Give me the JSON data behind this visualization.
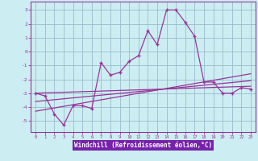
{
  "xlabel": "Windchill (Refroidissement éolien,°C)",
  "background_color": "#cceef2",
  "plot_bg_color": "#cceef2",
  "line_color": "#993399",
  "grid_color": "#99bbcc",
  "xlabel_bg": "#7722aa",
  "xlabel_fg": "#ffffff",
  "xlim": [
    -0.5,
    23.5
  ],
  "ylim": [
    -5.8,
    3.6
  ],
  "yticks": [
    -5,
    -4,
    -3,
    -2,
    -1,
    0,
    1,
    2,
    3
  ],
  "xticks": [
    0,
    1,
    2,
    3,
    4,
    5,
    6,
    7,
    8,
    9,
    10,
    11,
    12,
    13,
    14,
    15,
    16,
    17,
    18,
    19,
    20,
    21,
    22,
    23
  ],
  "main_x": [
    0,
    1,
    2,
    3,
    4,
    5,
    6,
    7,
    8,
    9,
    10,
    11,
    12,
    13,
    14,
    15,
    16,
    17,
    18,
    19,
    20,
    21,
    22,
    23
  ],
  "main_y": [
    -3.0,
    -3.2,
    -4.5,
    -5.3,
    -3.9,
    -3.9,
    -4.1,
    -0.8,
    -1.7,
    -1.5,
    -0.7,
    -0.3,
    1.5,
    0.5,
    3.0,
    3.0,
    2.1,
    1.1,
    -2.2,
    -2.2,
    -3.0,
    -3.0,
    -2.6,
    -2.7
  ],
  "line2_x": [
    0,
    23
  ],
  "line2_y": [
    -3.0,
    -2.5
  ],
  "line3_x": [
    0,
    23
  ],
  "line3_y": [
    -3.6,
    -2.1
  ],
  "line4_x": [
    0,
    23
  ],
  "line4_y": [
    -4.3,
    -1.6
  ]
}
